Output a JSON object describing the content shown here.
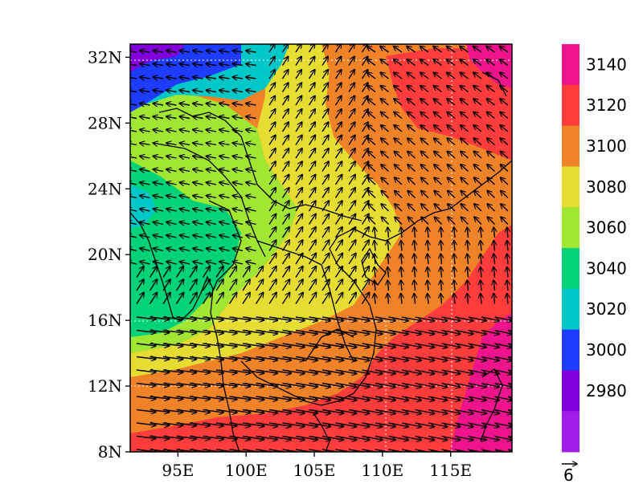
{
  "map": {
    "lat_labels": [
      "32N",
      "28N",
      "24N",
      "20N",
      "16N",
      "12N",
      "8N"
    ],
    "lon_labels": [
      "95E",
      "100E",
      "105E",
      "110E",
      "115E"
    ],
    "lat_values": [
      32,
      28,
      24,
      20,
      16,
      12,
      8
    ],
    "lon_values": [
      95,
      100,
      105,
      110,
      115
    ],
    "lon_range": [
      91.5,
      119.5
    ],
    "lat_range": [
      8,
      32.8
    ]
  },
  "colorbar": {
    "labels": [
      "3140",
      "3120",
      "3100",
      "3080",
      "3060",
      "3040",
      "3020",
      "3000",
      "2980"
    ],
    "colors_top_to_bottom": [
      "#f0148c",
      "#ff3c3c",
      "#f08228",
      "#e6dc32",
      "#a0e632",
      "#00d278",
      "#00c8c8",
      "#1e3cff",
      "#8200dc",
      "#a01ee6"
    ]
  },
  "vector_key": {
    "label": "6"
  },
  "colors": {
    "coast": "#000000",
    "arrow": "#000000",
    "grid": "#ffffff"
  }
}
